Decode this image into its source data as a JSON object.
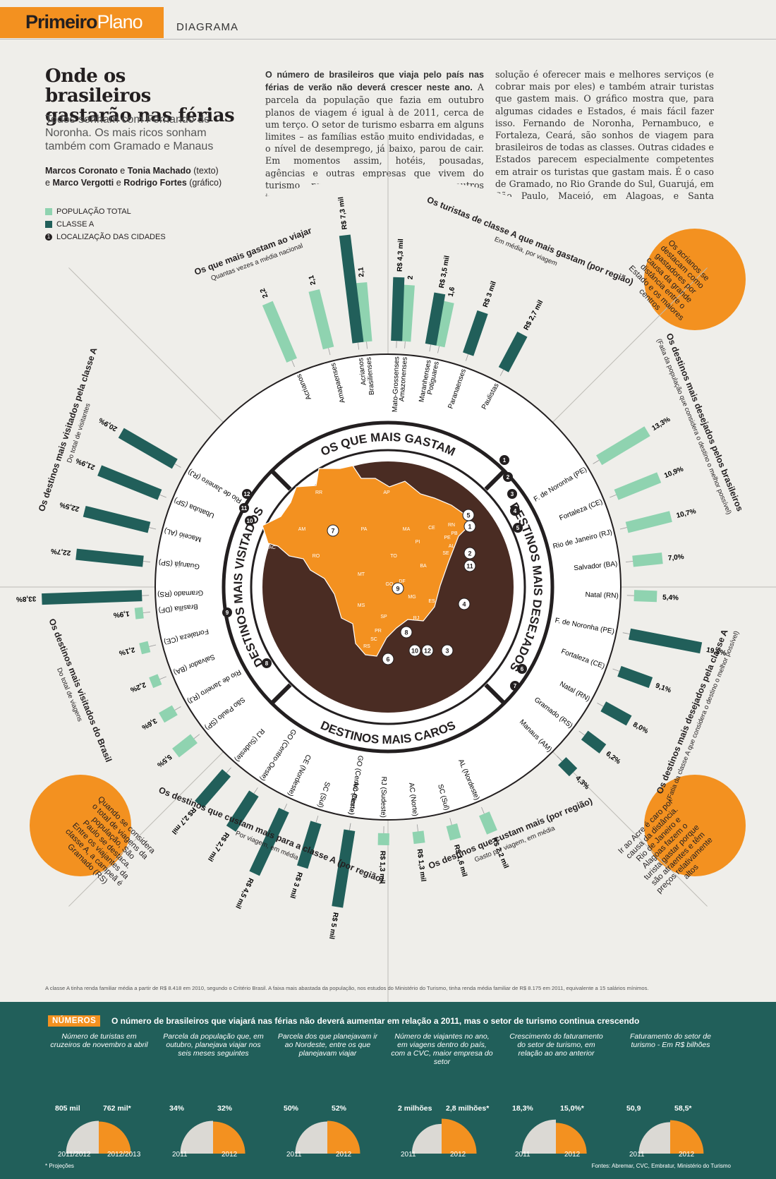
{
  "header": {
    "brand_bold": "Primeiro",
    "brand_light": "Plano",
    "section": "DIAGRAMA"
  },
  "title": "Onde os brasileiros gastarão nas férias",
  "subtitle": "Todos sonham com Fernando de Noronha. Os mais ricos sonham também com Gramado e Manaus",
  "credits": {
    "author1": "Marcos Coronato",
    "sep1": "e",
    "author2": "Tonia Machado",
    "role1": "(texto)",
    "sep2": "e",
    "author3": "Marco Vergotti",
    "sep3": "e",
    "author4": "Rodrigo Fortes",
    "role2": "(gráfico)"
  },
  "intro": {
    "lead": "O número de brasileiros que viaja pelo país nas férias de verão não deverá crescer neste ano.",
    "col1": "A parcela da população que fazia em outubro planos de viagem é igual à de 2011, cerca de um terço. O setor de turismo esbarra em alguns limites – as famílias estão muito endividadas, e o nível de desemprego, já baixo, parou de cair. Em momentos assim, hotéis, pousadas, agências e outras empresas que vivem do turismo prestam mais atenção a outros indicadores. Se está difícil atrair mais turistas, a",
    "col2": "solução é oferecer mais e melhores serviços (e cobrar mais por eles) e também atrair turistas que gastem mais. O gráfico mostra que, para algumas cidades e Estados, é mais fácil fazer isso. Fernando de Noronha, Pernambuco, e Fortaleza, Ceará, são sonhos de viagem para brasileiros de todas as classes. Outras cidades e Estados parecem especialmente competentes em atrair os turistas que gastam mais. É o caso de Gramado, no Rio Grande do Sul, Guarujá, em São Paulo, Maceió, em Alagoas, e Santa Catarina."
  },
  "legend": [
    {
      "label": "POPULAÇÃO TOTAL",
      "color": "#8fd3b0"
    },
    {
      "label": "CLASSE A",
      "color": "#215f5a"
    },
    {
      "label": "LOCALIZAÇÃO DAS CIDADES",
      "marker": "1"
    }
  ],
  "ring_titles": [
    "OS QUE MAIS GASTAM",
    "DESTINOS MAIS DESEJADOS",
    "DESTINOS MAIS CAROS",
    "DESTINOS MAIS VISITADOS"
  ],
  "map_labels": [
    "RR",
    "AP",
    "AM",
    "PA",
    "MA",
    "CE",
    "RN",
    "PB",
    "PE",
    "AL",
    "SE",
    "PI",
    "AC",
    "RO",
    "TO",
    "BA",
    "MT",
    "GO",
    "DF",
    "MG",
    "ES",
    "MS",
    "SP",
    "RJ",
    "PR",
    "SC",
    "RS"
  ],
  "map_markers": [
    "1",
    "2",
    "3",
    "4",
    "5",
    "6",
    "7",
    "8",
    "9",
    "10",
    "11",
    "12"
  ],
  "chart_data": [
    {
      "type": "bar",
      "title": "Os que mais gastam ao viajar",
      "subtitle": "Quantas vezes a média nacional",
      "series": [
        {
          "name": "POPULAÇÃO TOTAL"
        }
      ],
      "categories": [
        "Acrianos",
        "Amapaenses",
        "Brasilienses",
        "Amazonenses",
        "Potiguares"
      ],
      "values": [
        2.2,
        2.1,
        2.1,
        2,
        1.6
      ],
      "labels": [
        "2,2",
        "2,1",
        "2,1",
        "2",
        "1,6"
      ]
    },
    {
      "type": "bar",
      "title": "Os turistas de classe A que mais gastam (por região)",
      "subtitle": "Em média, por viagem",
      "series": [
        {
          "name": "CLASSE A"
        }
      ],
      "categories": [
        "Acrianos",
        "Mato-Grossenses",
        "Maranhenses",
        "Paranaenses",
        "Paulistas"
      ],
      "values": [
        7.3,
        4.3,
        3.5,
        3,
        2.7
      ],
      "labels": [
        "R$ 7,3 mil",
        "R$ 4,3 mil",
        "R$ 3,5 mil",
        "R$ 3 mil",
        "R$ 2,7 mil"
      ]
    },
    {
      "type": "bar",
      "title": "Os destinos mais desejados pelos brasileiros",
      "subtitle": "(Fatia da população que considera o destino o melhor possível)",
      "series": [
        {
          "name": "POPULAÇÃO TOTAL"
        }
      ],
      "categories": [
        "F. de Noronha (PE)",
        "Fortaleza (CE)",
        "Rio de Janeiro (RJ)",
        "Salvador (BA)",
        "Natal (RN)"
      ],
      "markers": [
        "1",
        "2",
        "3",
        "4",
        "5"
      ],
      "values": [
        13.3,
        10.9,
        10.7,
        7.0,
        5.4
      ],
      "labels": [
        "13,3%",
        "10,9%",
        "10,7%",
        "7,0%",
        "5,4%"
      ]
    },
    {
      "type": "bar",
      "title": "Os destinos mais desejados pela classe A",
      "subtitle": "(Fatia da classe A que considera o destino o melhor possível)",
      "series": [
        {
          "name": "CLASSE A"
        }
      ],
      "categories": [
        "F. de Noronha (PE)",
        "Fortaleza (CE)",
        "Natal (RN)",
        "Gramado (RS)",
        "Manaus (AM)"
      ],
      "markers": [
        "",
        "",
        "",
        "6",
        "7"
      ],
      "values": [
        19.8,
        9.1,
        8.0,
        6.2,
        4.3
      ],
      "labels": [
        "19,8%",
        "9,1%",
        "8,0%",
        "6,2%",
        "4,3%"
      ]
    },
    {
      "type": "bar",
      "title": "Os destinos que custam mais (por região)",
      "subtitle": "Gasto por viagem, em média",
      "series": [
        {
          "name": "POPULAÇÃO TOTAL"
        }
      ],
      "categories": [
        "AL (Nordeste)",
        "SC (Sul)",
        "AC (Norte)",
        "RJ (Sudeste)",
        "GO (Centro-Oeste)"
      ],
      "values": [
        2.2,
        1.6,
        1.3,
        1.3,
        1.2
      ],
      "labels": [
        "R$ 2,2 mil",
        "R$ 1,6 mil",
        "R$ 1,3 mil",
        "R$ 1,3 mil",
        "R$ 1,2 mil"
      ]
    },
    {
      "type": "bar",
      "title": "Os destinos que custam mais para a classe A (por região)",
      "subtitle": "Por viagem, em média",
      "series": [
        {
          "name": "CLASSE A"
        }
      ],
      "categories": [
        "AC (Norte)",
        "SC (Sul)",
        "CE (Nordeste)",
        "GO (Centro-Oeste)",
        "RJ (Sudeste)"
      ],
      "values": [
        5,
        3,
        4.5,
        2.7,
        2.7
      ],
      "labels": [
        "R$ 5 mil",
        "R$ 3 mil",
        "R$ 4,5 mil",
        "R$ 2,7 mil",
        "R$ 2,7 mil"
      ]
    },
    {
      "type": "bar",
      "title": "Os destinos mais visitados do Brasil",
      "subtitle": "Do total de viagens",
      "series": [
        {
          "name": "POPULAÇÃO TOTAL"
        }
      ],
      "categories": [
        "Brasília (DF)",
        "Fortaleza (CE)",
        "Salvador (BA)",
        "Rio de Janeiro (RJ)",
        "São Paulo (SP)"
      ],
      "markers": [
        "9",
        "",
        "",
        "",
        "8"
      ],
      "values": [
        1.9,
        2.1,
        2.2,
        3.6,
        5.5
      ],
      "labels": [
        "1,9%",
        "2,1%",
        "2,2%",
        "3,6%",
        "5,5%"
      ]
    },
    {
      "type": "bar",
      "title": "Os destinos mais visitados pela classe A",
      "subtitle": "Do total de visitantes",
      "series": [
        {
          "name": "CLASSE A"
        }
      ],
      "categories": [
        "Rio de Janeiro (RJ)",
        "Ubatuba (SP)",
        "Maceió (AL)",
        "Guarujá (SP)",
        "Gramado (RS)"
      ],
      "markers": [
        "",
        "12",
        "11",
        "10",
        ""
      ],
      "values": [
        20.9,
        21.9,
        22.5,
        22.7,
        33.8
      ],
      "labels": [
        "20,9%",
        "21,9%",
        "22,5%",
        "22,7%",
        "33,8%"
      ]
    }
  ],
  "bubbles": [
    "Os acrianos se destacam como gastadores por causa da grande distância entre o Estado e os maiores centros",
    "Ir ao Acre é caro por causa da distância. Rio de Janeiro e Alagoas fazem o turista gastar porque são atraentes e têm preços relativamente altos",
    "Quando se considera o total de viagens da população, São Paulo se destaca. Entre os viajantes da classe A, a campeã é Gramado (RS)"
  ],
  "footnote": "A classe A tinha renda familiar média a partir de R$ 8.418 em 2010, segundo o Critério Brasil. A faixa mais abastada da população, nos estudos do Ministério do Turismo, tinha renda média familiar de R$ 8.175 em 2011, equivalente a 15 salários mínimos.",
  "numbers": {
    "tag": "NÚMEROS",
    "headline": "O número de brasileiros que viajará nas férias não deverá aumentar em relação a 2011, mas o setor de turismo continua crescendo",
    "cards": [
      {
        "caption": "Número de turistas em cruzeiros de novembro a abril",
        "v1": "805 mil",
        "v2": "762 mil*",
        "y1": "2011/2012",
        "y2": "2012/2013",
        "f1": 0.51,
        "f2": 0.49
      },
      {
        "caption": "Parcela da população que, em outubro, planejava viajar nos seis meses seguintes",
        "v1": "34%",
        "v2": "32%",
        "y1": "2011",
        "y2": "2012",
        "f1": 0.51,
        "f2": 0.49
      },
      {
        "caption": "Parcela dos que planejavam ir ao Nordeste, entre os que planejavam viajar",
        "v1": "50%",
        "v2": "52%",
        "y1": "2011",
        "y2": "2012",
        "f1": 0.49,
        "f2": 0.51
      },
      {
        "caption": "Número de viajantes no ano, em viagens dentro do país, com a CVC, maior empresa do setor",
        "v1": "2 milhões",
        "v2": "2,8 milhões*",
        "y1": "2011",
        "y2": "2012",
        "f1": 0.42,
        "f2": 0.58
      },
      {
        "caption": "Crescimento do faturamento do setor de turismo, em relação ao ano anterior",
        "v1": "18,3%",
        "v2": "15,0%*",
        "y1": "2011",
        "y2": "2012",
        "f1": 0.55,
        "f2": 0.45
      },
      {
        "caption": "Faturamento do setor de turismo - Em R$ bilhões",
        "v1": "50,9",
        "v2": "58,5*",
        "y1": "2011",
        "y2": "2012",
        "f1": 0.47,
        "f2": 0.53
      }
    ],
    "projection_note": "* Projeções",
    "sources": "Fontes: Abremar, CVC, Embratur, Ministério do Turismo"
  },
  "colors": {
    "orange": "#f39120",
    "teal_dark": "#215f5a",
    "teal_light": "#8fd3b0",
    "brown": "#4a2c23",
    "grey_pie": "#dbd9d4"
  }
}
